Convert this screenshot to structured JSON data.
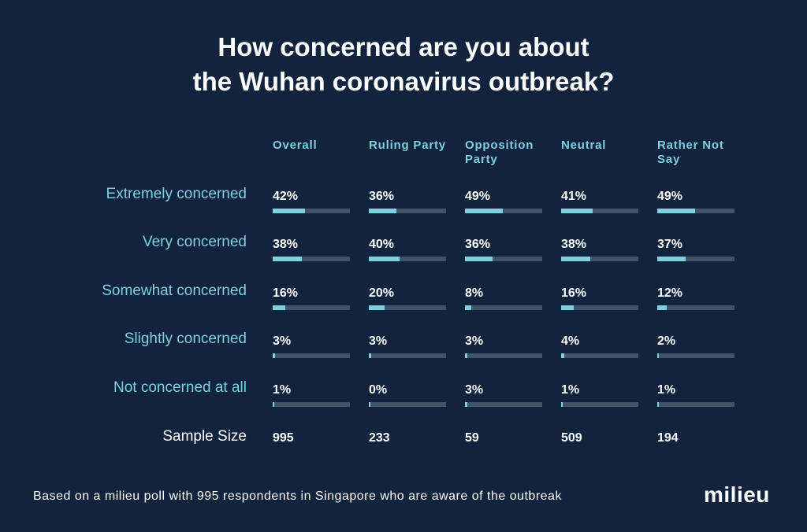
{
  "title_lines": [
    "How concerned are you about",
    "the Wuhan coronavirus outbreak?"
  ],
  "chart_data": {
    "type": "table",
    "columns": [
      "Overall",
      "Ruling Party",
      "Opposition Party",
      "Neutral",
      "Rather Not Say"
    ],
    "rows": [
      {
        "label": "Extremely concerned",
        "values": [
          42,
          36,
          49,
          41,
          49
        ],
        "display": [
          "42%",
          "36%",
          "49%",
          "41%",
          "49%"
        ]
      },
      {
        "label": "Very concerned",
        "values": [
          38,
          40,
          36,
          38,
          37
        ],
        "display": [
          "38%",
          "40%",
          "36%",
          "38%",
          "37%"
        ]
      },
      {
        "label": "Somewhat concerned",
        "values": [
          16,
          20,
          8,
          16,
          12
        ],
        "display": [
          "16%",
          "20%",
          "8%",
          "16%",
          "12%"
        ]
      },
      {
        "label": "Slightly concerned",
        "values": [
          3,
          3,
          3,
          4,
          2
        ],
        "display": [
          "3%",
          "3%",
          "3%",
          "4%",
          "2%"
        ]
      },
      {
        "label": "Not concerned at all",
        "values": [
          1,
          0,
          3,
          1,
          1
        ],
        "display": [
          "1%",
          "0%",
          "3%",
          "1%",
          "1%"
        ]
      }
    ],
    "sample_size": {
      "label": "Sample Size",
      "values": [
        "995",
        "233",
        "59",
        "509",
        "194"
      ]
    },
    "value_unit": "%",
    "bar_max": 100
  },
  "footnote": "Based on a milieu poll with 995 respondents in Singapore who are aware of the outbreak",
  "logo_text": "milieu",
  "colors": {
    "background": "#11233d",
    "accent": "#7fd1de",
    "track": "#3f5466",
    "text": "#ffffff"
  }
}
